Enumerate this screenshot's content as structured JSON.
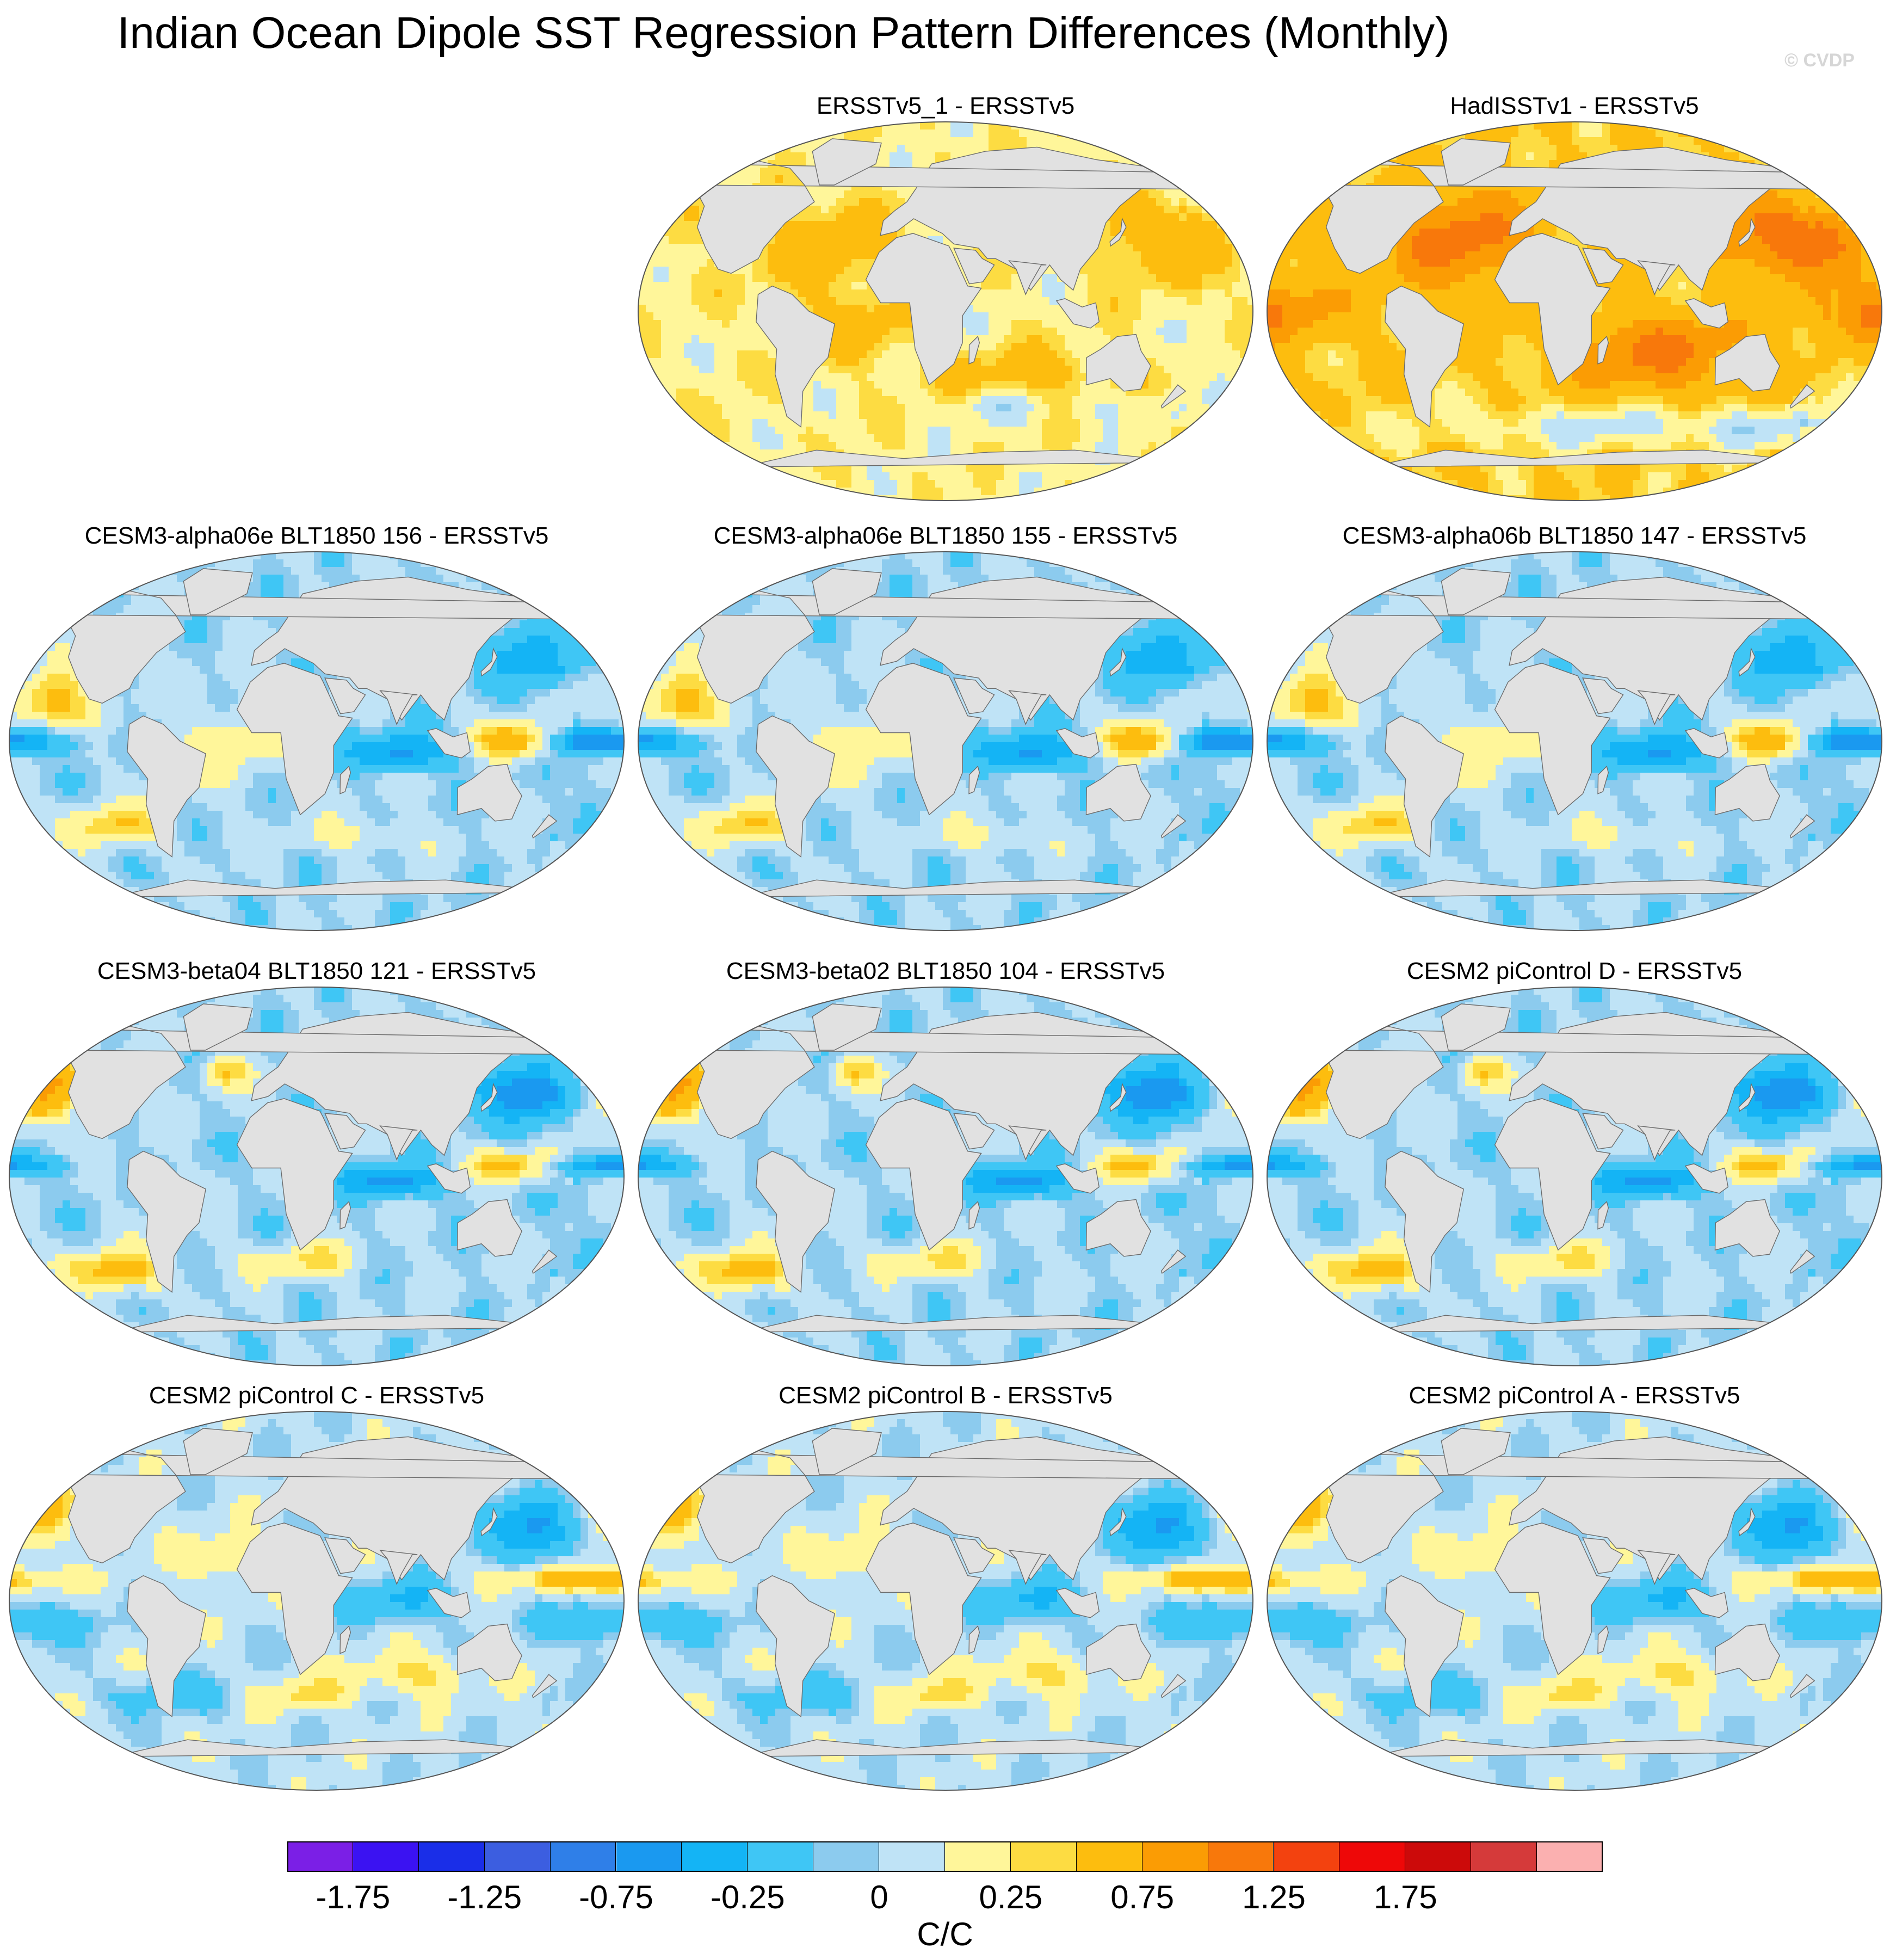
{
  "title": "Indian Ocean Dipole SST Regression Pattern Differences (Monthly)",
  "credit": "© CVDP",
  "panels": [
    {
      "title": "ERSSTv5_1 - ERSSTv5",
      "pattern": "warm-light"
    },
    {
      "title": "HadISSTv1 - ERSSTv5",
      "pattern": "warm-strong"
    },
    {
      "title": "CESM3-alpha06e BLT1850 156 - ERSSTv5",
      "pattern": "cool-pacific-dipole"
    },
    {
      "title": "CESM3-alpha06e BLT1850 155 - ERSSTv5",
      "pattern": "cool-pacific-dipole"
    },
    {
      "title": "CESM3-alpha06b BLT1850 147 - ERSSTv5",
      "pattern": "cool-pacific-dipole"
    },
    {
      "title": "CESM3-beta04 BLT1850 121 - ERSSTv5",
      "pattern": "mixed-north-pacific"
    },
    {
      "title": "CESM3-beta02 BLT1850 104 - ERSSTv5",
      "pattern": "mixed-north-pacific"
    },
    {
      "title": "CESM2 piControl D - ERSSTv5",
      "pattern": "mixed-north-pacific"
    },
    {
      "title": "CESM2 piControl C - ERSSTv5",
      "pattern": "mixed"
    },
    {
      "title": "CESM2 piControl B - ERSSTv5",
      "pattern": "mixed"
    },
    {
      "title": "CESM2 piControl A - ERSSTv5",
      "pattern": "mixed"
    }
  ],
  "colorbar": {
    "colors": [
      "#7b1fe6",
      "#3b12f2",
      "#1a2ee8",
      "#3c5ee0",
      "#2f7fe8",
      "#1a99f0",
      "#14b4f5",
      "#3fc6f5",
      "#8ccbee",
      "#bfe3f6",
      "#fff69a",
      "#fddc42",
      "#fdbd0e",
      "#fb9c04",
      "#f8780b",
      "#f3420f",
      "#ee0808",
      "#cc0a0a",
      "#d53a3a",
      "#fbb0b0"
    ],
    "labels": [
      "-1.75",
      "-1.25",
      "-0.75",
      "-0.25",
      "0",
      "0.25",
      "0.75",
      "1.25",
      "1.75"
    ],
    "units": "C/C"
  }
}
